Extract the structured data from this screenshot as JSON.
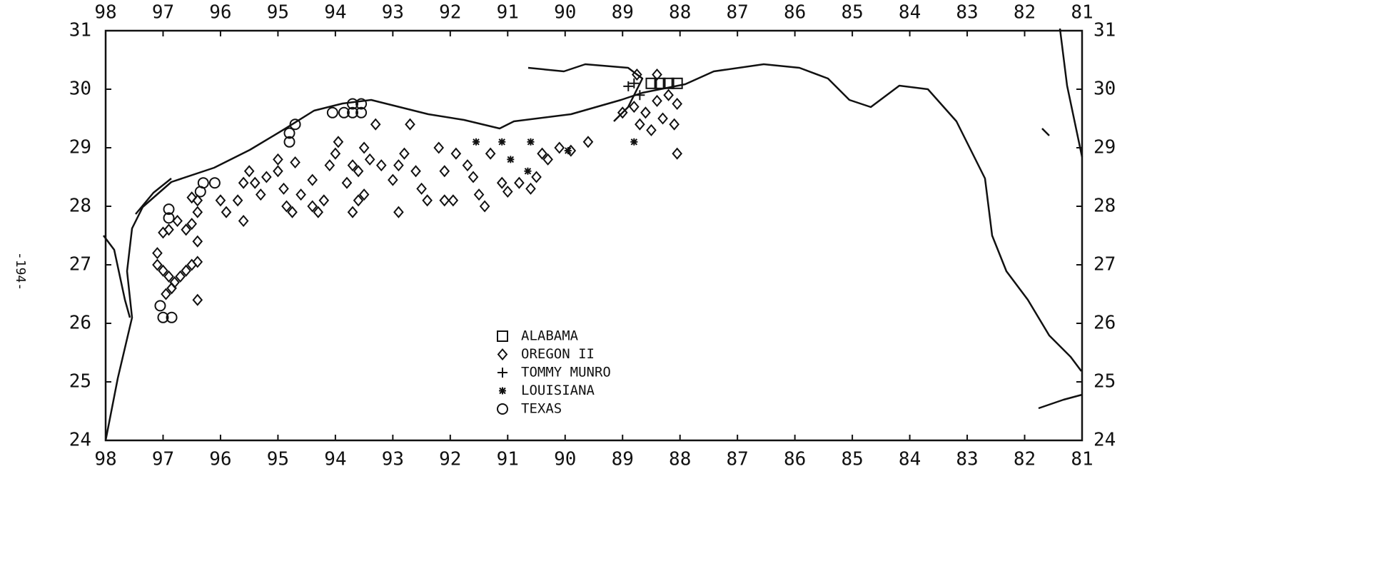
{
  "page_number": "-194-",
  "chart_data": {
    "type": "scatter",
    "xlim": [
      98,
      81
    ],
    "ylim": [
      24,
      31
    ],
    "xticks": [
      98,
      97,
      96,
      95,
      94,
      93,
      92,
      91,
      90,
      89,
      88,
      87,
      86,
      85,
      84,
      83,
      82,
      81
    ],
    "yticks": [
      24,
      25,
      26,
      27,
      28,
      29,
      30,
      31
    ],
    "series": [
      {
        "name": "ALABAMA",
        "marker": "square",
        "color": "#111",
        "x": [
          88.5,
          88.35,
          88.2,
          88.05
        ],
        "y": [
          30.1,
          30.1,
          30.1,
          30.1
        ]
      },
      {
        "name": "OREGON II",
        "marker": "diamond",
        "color": "#111",
        "x": [
          97.1,
          97.1,
          97.0,
          96.9,
          96.8,
          96.7,
          96.6,
          96.5,
          96.4,
          96.4,
          96.4,
          96.95,
          96.85,
          97.0,
          96.9,
          96.75,
          96.6,
          96.5,
          96.4,
          96.4,
          96.5,
          96.0,
          95.9,
          95.7,
          95.6,
          95.6,
          95.5,
          95.4,
          95.3,
          95.2,
          95.0,
          95.0,
          94.9,
          94.85,
          94.75,
          94.7,
          94.6,
          94.4,
          94.4,
          94.3,
          94.2,
          94.1,
          94.0,
          93.95,
          93.8,
          93.7,
          93.6,
          93.5,
          93.4,
          93.3,
          93.2,
          93.7,
          93.6,
          93.5,
          93.0,
          92.9,
          92.9,
          92.8,
          92.7,
          92.6,
          92.5,
          92.4,
          92.2,
          92.1,
          92.1,
          91.95,
          91.9,
          91.7,
          91.6,
          91.5,
          91.4,
          91.3,
          91.1,
          91.0,
          90.8,
          90.6,
          90.5,
          90.4,
          90.3,
          90.1,
          89.9,
          89.6,
          89.0,
          88.8,
          88.7,
          88.6,
          88.5,
          88.4,
          88.3,
          88.2,
          88.1,
          88.05,
          88.05,
          88.75,
          88.4
        ],
        "y": [
          27.2,
          27.0,
          26.9,
          26.8,
          26.7,
          26.8,
          26.9,
          27.0,
          27.05,
          26.4,
          27.4,
          26.5,
          26.6,
          27.55,
          27.6,
          27.75,
          27.6,
          27.7,
          27.9,
          28.1,
          28.15,
          28.1,
          27.9,
          28.1,
          27.75,
          28.4,
          28.6,
          28.4,
          28.2,
          28.5,
          28.8,
          28.6,
          28.3,
          28.0,
          27.9,
          28.75,
          28.2,
          28.45,
          28.0,
          27.9,
          28.1,
          28.7,
          28.9,
          29.1,
          28.4,
          28.7,
          28.6,
          29.0,
          28.8,
          29.4,
          28.7,
          27.9,
          28.1,
          28.2,
          28.45,
          28.7,
          27.9,
          28.9,
          29.4,
          28.6,
          28.3,
          28.1,
          29.0,
          28.6,
          28.1,
          28.1,
          28.9,
          28.7,
          28.5,
          28.2,
          28.0,
          28.9,
          28.4,
          28.25,
          28.4,
          28.3,
          28.5,
          28.9,
          28.8,
          29.0,
          28.95,
          29.1,
          29.6,
          29.7,
          29.4,
          29.6,
          29.3,
          29.8,
          29.5,
          29.9,
          29.4,
          29.75,
          28.9,
          30.25,
          30.25
        ]
      },
      {
        "name": "TOMMY MUNRO",
        "marker": "plus",
        "color": "#111",
        "x": [
          88.9,
          88.8,
          88.7
        ],
        "y": [
          30.05,
          30.1,
          29.9
        ]
      },
      {
        "name": "LOUISIANA",
        "marker": "asterisk",
        "color": "#111",
        "x": [
          91.55,
          91.1,
          90.95,
          90.65,
          90.6,
          89.95,
          88.8
        ],
        "y": [
          29.1,
          29.1,
          28.8,
          28.6,
          29.1,
          28.95,
          29.1
        ]
      },
      {
        "name": "TEXAS",
        "marker": "circle",
        "color": "#111",
        "x": [
          97.0,
          96.85,
          97.05,
          96.9,
          96.9,
          96.35,
          96.3,
          96.1,
          94.8,
          94.8,
          94.7,
          94.05,
          93.85,
          93.7,
          93.55,
          93.7,
          93.55
        ],
        "y": [
          26.1,
          26.1,
          26.3,
          27.8,
          27.95,
          28.25,
          28.4,
          28.4,
          29.1,
          29.25,
          29.4,
          29.6,
          29.6,
          29.6,
          29.75,
          29.75,
          29.6
        ]
      }
    ]
  }
}
